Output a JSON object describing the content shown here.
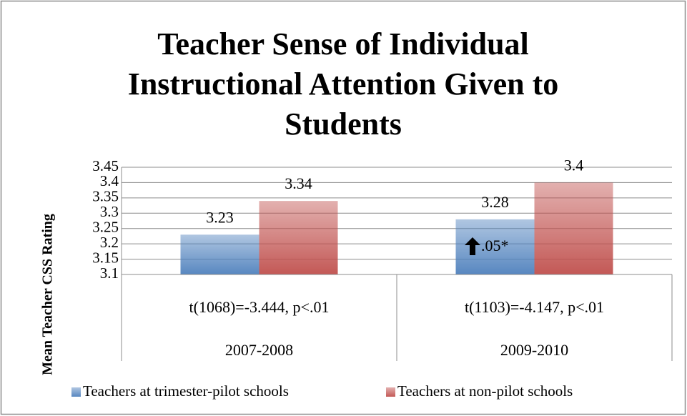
{
  "chart_data": {
    "type": "bar",
    "title": [
      "Teacher Sense of Individual",
      "Instructional Attention Given to",
      "Students"
    ],
    "y_label": "Mean Teacher CSS Rating",
    "categories": [
      "2007-2008",
      "2009-2010"
    ],
    "series": [
      {
        "name": "Teachers at trimester-pilot schools",
        "color": "#4f81bd",
        "values": [
          3.23,
          3.28
        ]
      },
      {
        "name": "Teachers at non-pilot schools",
        "color": "#c0504d",
        "values": [
          3.34,
          3.4
        ]
      }
    ],
    "annotations": [
      "t(1068)=-3.444, p<.01",
      "t(1103)=-4.147, p<.01",
      ".05*"
    ],
    "ylim": [
      3.1,
      3.45
    ],
    "yticks": [
      3.1,
      3.15,
      3.2,
      3.25,
      3.3,
      3.35,
      3.4,
      3.45
    ],
    "grid": true,
    "legend": "bottom"
  }
}
